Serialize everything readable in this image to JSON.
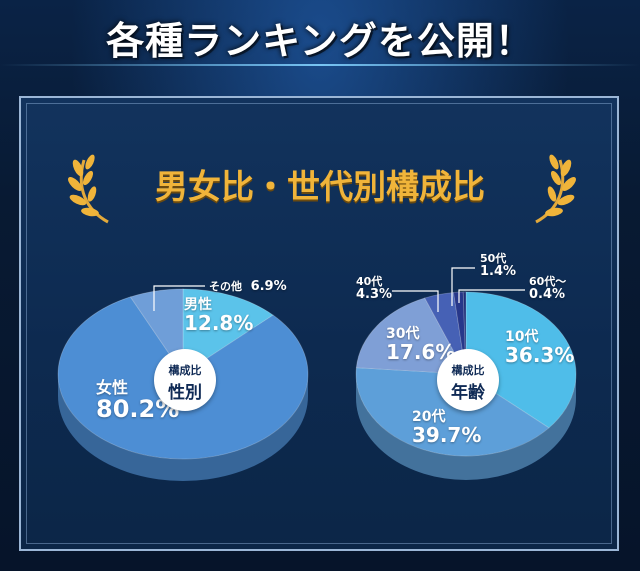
{
  "header": {
    "title": "各種ランキングを公開！"
  },
  "section": {
    "title": "男女比・世代別構成比"
  },
  "chart_data": [
    {
      "type": "pie",
      "center_label": {
        "top": "構成比",
        "bottom": "性別"
      },
      "slices": [
        {
          "name": "男性",
          "value": 12.8,
          "label": "12.8%",
          "color": "#5bc3ea"
        },
        {
          "name": "女性",
          "value": 80.2,
          "label": "80.2%",
          "color": "#4d8ed4"
        },
        {
          "name": "その他",
          "value": 6.9,
          "label": "6.9%",
          "color": "#6f9ed8"
        }
      ]
    },
    {
      "type": "pie",
      "center_label": {
        "top": "構成比",
        "bottom": "年齢"
      },
      "slices": [
        {
          "name": "10代",
          "value": 36.3,
          "label": "36.3%",
          "color": "#4fbde9"
        },
        {
          "name": "20代",
          "value": 39.7,
          "label": "39.7%",
          "color": "#5d9fd9"
        },
        {
          "name": "30代",
          "value": 17.6,
          "label": "17.6%",
          "color": "#7f9fd6"
        },
        {
          "name": "40代",
          "value": 4.3,
          "label": "4.3%",
          "color": "#4661b5"
        },
        {
          "name": "50代",
          "value": 1.4,
          "label": "1.4%",
          "color": "#27378a"
        },
        {
          "name": "60代～",
          "value": 0.4,
          "label": "0.4%",
          "color": "#1e2f78"
        }
      ]
    }
  ]
}
